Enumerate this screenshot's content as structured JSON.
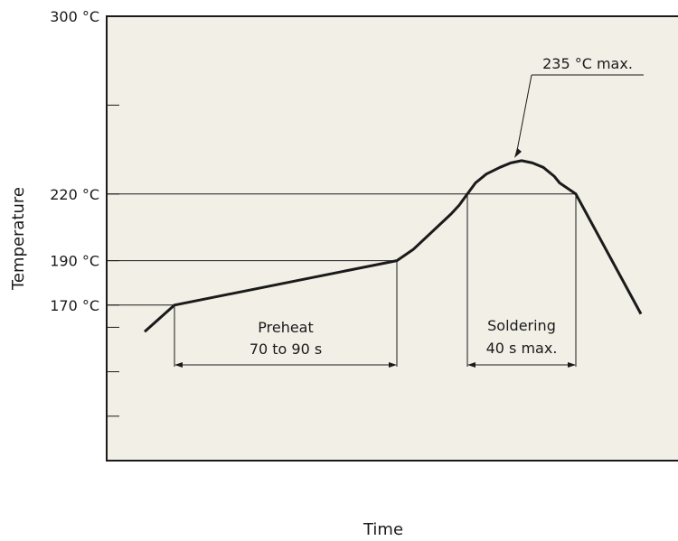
{
  "colors": {
    "plot_background": "#f1efe6",
    "curve": "#1a1a1a",
    "lines": "#1a1a1a"
  },
  "chart_data": {
    "type": "line",
    "title": "",
    "xlabel": "Time",
    "ylabel": "Temperature",
    "ylim": [
      100,
      300
    ],
    "y_ticks": [
      120,
      140,
      160,
      170,
      190,
      220,
      260,
      300
    ],
    "y_tick_labels": [
      {
        "value": 300,
        "label": "300 °C"
      },
      {
        "value": 220,
        "label": "220 °C"
      },
      {
        "value": 190,
        "label": "190 °C"
      },
      {
        "value": 170,
        "label": "170 °C"
      }
    ],
    "grid": false,
    "series": [
      {
        "points": [
          {
            "t": 12,
            "temp": 158
          },
          {
            "t": 23,
            "temp": 170
          },
          {
            "t": 105,
            "temp": 190
          },
          {
            "t": 111,
            "temp": 195
          },
          {
            "t": 125,
            "temp": 211
          },
          {
            "t": 128,
            "temp": 215
          },
          {
            "t": 131,
            "temp": 220
          },
          {
            "t": 134,
            "temp": 225
          },
          {
            "t": 138,
            "temp": 229
          },
          {
            "t": 143,
            "temp": 232
          },
          {
            "t": 147,
            "temp": 234
          },
          {
            "t": 151,
            "temp": 235
          },
          {
            "t": 155,
            "temp": 234
          },
          {
            "t": 159,
            "temp": 232
          },
          {
            "t": 163,
            "temp": 228
          },
          {
            "t": 165,
            "temp": 225
          },
          {
            "t": 171,
            "temp": 220
          },
          {
            "t": 195,
            "temp": 166
          }
        ]
      }
    ],
    "annotations": {
      "peak_label": "235 °C max.",
      "peak_value": 235,
      "preheat": {
        "line1": "Preheat",
        "line2": "70 to 90 s"
      },
      "soldering": {
        "line1": "Soldering",
        "line2": "40 s max."
      }
    }
  }
}
